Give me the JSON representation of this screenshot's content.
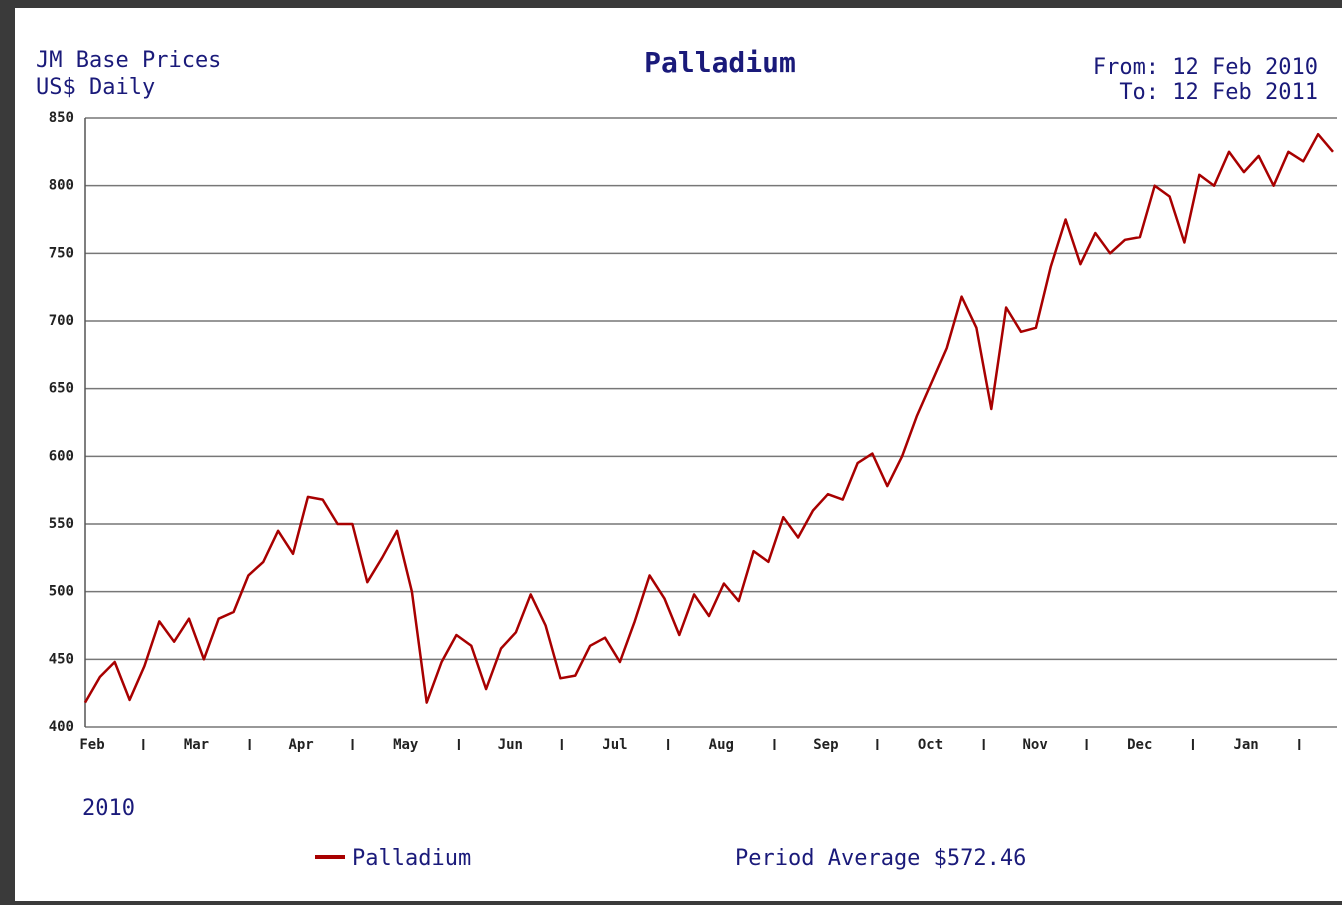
{
  "chart_data": {
    "type": "line",
    "title": "Palladium",
    "source": "JM Base Prices",
    "unit_note": "US$ Daily",
    "from": "From: 12 Feb 2010",
    "to": "To: 12 Feb 2011",
    "year_label": "2010",
    "period_average": "Period Average $572.46",
    "months": [
      "Feb",
      "Mar",
      "Apr",
      "May",
      "Jun",
      "Jul",
      "Aug",
      "Sep",
      "Oct",
      "Nov",
      "Dec",
      "Jan"
    ],
    "series": [
      {
        "name": "Palladium",
        "color": "#a80000",
        "values": [
          418,
          437,
          448,
          420,
          445,
          478,
          463,
          480,
          450,
          480,
          485,
          512,
          522,
          545,
          528,
          570,
          568,
          550,
          550,
          507,
          525,
          545,
          500,
          418,
          448,
          468,
          460,
          428,
          458,
          470,
          498,
          475,
          436,
          438,
          460,
          466,
          448,
          478,
          512,
          495,
          468,
          498,
          482,
          506,
          493,
          530,
          522,
          555,
          540,
          560,
          572,
          568,
          595,
          602,
          578,
          600,
          630,
          655,
          680,
          718,
          695,
          635,
          710,
          692,
          695,
          740,
          775,
          742,
          765,
          750,
          760,
          762,
          800,
          792,
          758,
          808,
          800,
          825,
          810,
          822,
          800,
          825,
          818,
          838,
          825
        ]
      }
    ],
    "ylim": [
      400,
      850
    ],
    "yticks": [
      400,
      450,
      500,
      550,
      600,
      650,
      700,
      750,
      800,
      850
    ],
    "grid": true
  }
}
